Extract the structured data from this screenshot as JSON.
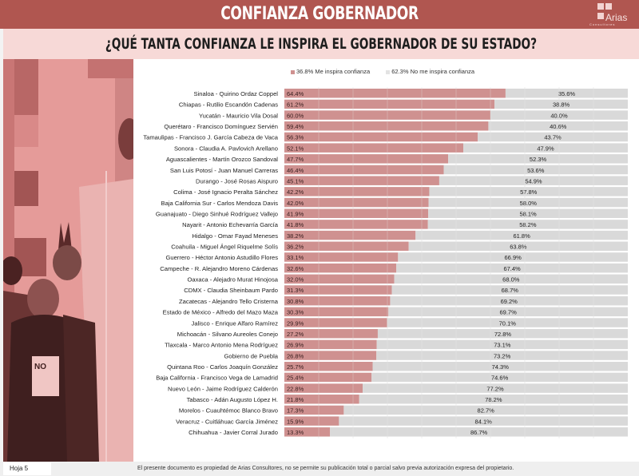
{
  "header": {
    "title": "CONFIANZA GOBERNADOR",
    "logo_text": "Arias",
    "logo_subtext": "Consultores"
  },
  "subheader": {
    "question": "¿QUÉ TANTA CONFIANZA LE INSPIRA EL GOBERNADOR DE SU ESTADO?"
  },
  "footer": {
    "page_label": "Hoja 5",
    "disclaimer": "El presente documento es propiedad de Arias Consultores, no se permite su publicación total o parcial salvo previa autorización expresa del propietario."
  },
  "colors": {
    "header_bg": "#b05650",
    "subheader_bg": "#f7d9d7",
    "confianza": "#cf9190",
    "no_confianza": "#d9d9d9"
  },
  "chart_data": {
    "type": "bar",
    "orientation": "horizontal",
    "stacked": true,
    "title": "¿QUÉ TANTA CONFIANZA LE INSPIRA EL GOBERNADOR DE SU ESTADO?",
    "xlabel": "",
    "ylabel": "",
    "xlim": [
      0,
      100
    ],
    "grid": true,
    "legend_position": "top",
    "legend": [
      "36.8% Me inspira confianza",
      "62.3% No me inspira confianza"
    ],
    "categories": [
      "Sinaloa - Quirino Ordaz Coppel",
      "Chiapas - Rutilio Escandón Cadenas",
      "Yucatán  - Mauricio Vila Dosal",
      "Querétaro - Francisco Domínguez Servién",
      "Tamaulipas - Francisco J. García Cabeza de Vaca",
      "Sonora - Claudia A. Pavlovich Arellano",
      "Aguascalientes - Martín Orozco Sandoval",
      "San Luis Potosí - Juan Manuel Carreras",
      "Durango - José Rosas Aispuro",
      "Colima - José Ignacio Peralta Sánchez",
      "Baja California Sur - Carlos Mendoza Davis",
      "Guanajuato - Diego Sinhué Rodríguez Vallejo",
      "Nayarit - Antonio Echevarría García",
      "Hidalgo - Omar Fayad Meneses",
      "Coahuila - Miguel Ángel Riquelme Solís",
      "Guerrero - Héctor Antonio Astudillo Flores",
      "Campeche - R. Alejandro Moreno Cárdenas",
      "Oaxaca  - Alejadro Murat Hinojosa",
      "CDMX - Claudia Sheinbaum Pardo",
      "Zacatecas - Alejandro Tello Cristerna",
      "Estado de México - Alfredo del Mazo Maza",
      "Jalisco - Enrique Alfaro Ramírez",
      "Michoacán - Silvano Aureoles Conejo",
      "Tlaxcala - Marco Antonio Mena Rodríguez",
      "Gobierno de Puebla",
      "Quintana Roo - Carlos Joaquín González",
      "Baja California - Francisco Vega de Lamadrid",
      "Nuevo León  - Jaime Rodríguez Calderón",
      "Tabasco - Adán Augusto López H.",
      "Morelos - Cuauhtémoc Blanco Bravo",
      "Veracruz - Cuitláhuac García Jiménez",
      "Chihuahua - Javier Corral Jurado"
    ],
    "series": [
      {
        "name": "Me inspira confianza",
        "color": "#cf9190",
        "values": [
          64.4,
          61.2,
          60.0,
          59.4,
          56.3,
          52.1,
          47.7,
          46.4,
          45.1,
          42.2,
          42.0,
          41.9,
          41.8,
          38.2,
          36.2,
          33.1,
          32.6,
          32.0,
          31.3,
          30.8,
          30.3,
          29.9,
          27.2,
          26.9,
          26.8,
          25.7,
          25.4,
          22.8,
          21.8,
          17.3,
          15.9,
          13.3
        ]
      },
      {
        "name": "No me inspira confianza",
        "color": "#d9d9d9",
        "values": [
          35.6,
          38.8,
          40.0,
          40.6,
          43.7,
          47.9,
          52.3,
          53.6,
          54.9,
          57.8,
          58.0,
          58.1,
          58.2,
          61.8,
          63.8,
          66.9,
          67.4,
          68.0,
          68.7,
          69.2,
          69.7,
          70.1,
          72.8,
          73.1,
          73.2,
          74.3,
          74.6,
          77.2,
          78.2,
          82.7,
          84.1,
          86.7
        ]
      }
    ]
  }
}
